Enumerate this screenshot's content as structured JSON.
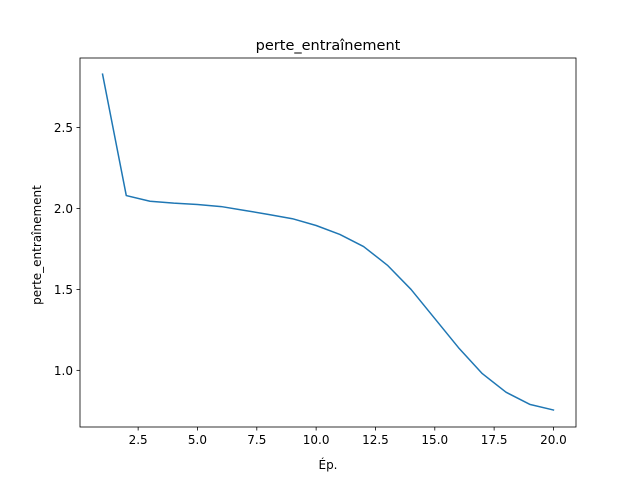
{
  "chart_data": {
    "type": "line",
    "title": "perte_entraînement",
    "xlabel": "Ép.",
    "ylabel": "perte_entraînement",
    "xlim": [
      0.05,
      20.95
    ],
    "ylim": [
      0.65,
      2.93
    ],
    "xticks": [
      2.5,
      5.0,
      7.5,
      10.0,
      12.5,
      15.0,
      17.5,
      20.0
    ],
    "xtick_labels": [
      "2.5",
      "5.0",
      "7.5",
      "10.0",
      "12.5",
      "15.0",
      "17.5",
      "20.0"
    ],
    "yticks": [
      1.0,
      1.5,
      2.0,
      2.5
    ],
    "ytick_labels": [
      "1.0",
      "1.5",
      "2.0",
      "2.5"
    ],
    "grid": false,
    "legend": "none",
    "series": [
      {
        "color": "#1f77b4",
        "x": [
          1,
          2,
          3,
          4,
          5,
          6,
          7,
          8,
          9,
          10,
          11,
          12,
          13,
          14,
          15,
          16,
          17,
          18,
          19,
          20
        ],
        "y": [
          2.83,
          2.08,
          2.045,
          2.033,
          2.025,
          2.012,
          1.988,
          1.963,
          1.937,
          1.895,
          1.84,
          1.765,
          1.65,
          1.5,
          1.32,
          1.14,
          0.98,
          0.865,
          0.79,
          0.755
        ]
      }
    ]
  }
}
